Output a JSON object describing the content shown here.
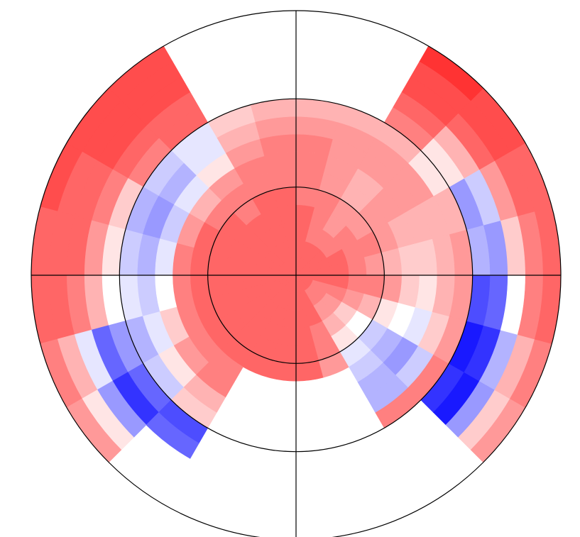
{
  "chart_data": {
    "type": "polar_heatmap",
    "r_edges": [
      0,
      0.2,
      0.4,
      0.6,
      0.8,
      1.0,
      1.2,
      1.4,
      1.6,
      1.8,
      2.0,
      2.2,
      2.4,
      2.6,
      2.8,
      3.0
    ],
    "theta_edges": [
      0,
      15,
      30,
      45,
      60,
      75,
      90,
      105,
      120,
      135,
      150,
      165,
      180,
      195,
      210,
      225,
      240,
      255,
      270,
      285,
      300,
      315,
      330,
      345,
      360
    ],
    "values": [
      [
        0.6,
        0.6,
        0.6,
        0.6,
        0.6,
        0.6,
        0.6,
        0.6,
        0.6,
        0.6,
        0.6,
        0.6,
        0.6,
        0.6,
        0.6,
        0.6,
        0.6,
        0.6,
        0.6,
        0.6,
        0.6,
        0.6,
        0.6,
        0.6
      ],
      [
        0.6,
        0.6,
        0.6,
        0.6,
        0.6,
        0.6,
        0.6,
        0.6,
        0.6,
        0.6,
        0.6,
        0.6,
        0.6,
        0.6,
        0.6,
        0.6,
        0.6,
        0.6,
        0.6,
        0.6,
        0.5,
        0.5,
        0.5,
        0.6
      ],
      [
        0.6,
        0.6,
        0.5,
        0.5,
        0.5,
        0.6,
        0.6,
        0.6,
        0.6,
        0.6,
        0.6,
        0.6,
        0.6,
        0.6,
        0.6,
        0.6,
        0.6,
        0.6,
        0.6,
        0.6,
        0.4,
        0.4,
        0.5,
        0.6
      ],
      [
        0.5,
        0.5,
        0.5,
        0.4,
        0.5,
        0.6,
        0.6,
        0.6,
        0.6,
        0.6,
        0.6,
        0.6,
        0.6,
        0.6,
        0.6,
        0.6,
        0.6,
        0.6,
        0.6,
        0.5,
        0.3,
        0.2,
        0.4,
        0.5
      ],
      [
        0.4,
        0.5,
        0.4,
        0.4,
        0.5,
        0.5,
        0.6,
        0.6,
        0.5,
        0.6,
        0.6,
        0.6,
        0.6,
        0.6,
        0.6,
        0.6,
        0.6,
        0.6,
        0.6,
        0.5,
        0.1,
        0.0,
        0.3,
        0.5
      ],
      [
        0.3,
        0.4,
        0.4,
        0.3,
        0.4,
        0.5,
        0.5,
        0.5,
        0.5,
        0.5,
        0.6,
        0.6,
        0.6,
        0.6,
        0.6,
        0.6,
        0.6,
        0.6,
        0.6,
        0.4,
        -0.1,
        -0.2,
        0.1,
        0.4
      ],
      [
        0.2,
        0.3,
        0.4,
        0.3,
        0.4,
        0.5,
        0.5,
        0.5,
        0.4,
        0.3,
        0.4,
        0.5,
        0.5,
        0.5,
        0.5,
        0.5,
        null,
        null,
        null,
        null,
        -0.2,
        -0.3,
        0.0,
        0.2
      ],
      [
        0.2,
        0.3,
        0.4,
        0.4,
        0.4,
        0.5,
        0.5,
        0.4,
        0.1,
        -0.1,
        -0.2,
        -0.1,
        0.0,
        0.2,
        0.4,
        0.5,
        null,
        null,
        null,
        null,
        -0.3,
        -0.4,
        -0.1,
        0.1
      ],
      [
        0.3,
        0.3,
        0.4,
        0.4,
        0.4,
        0.4,
        0.4,
        0.3,
        -0.1,
        -0.3,
        -0.4,
        -0.3,
        -0.2,
        -0.1,
        0.1,
        0.3,
        null,
        null,
        null,
        null,
        -0.3,
        -0.2,
        0.2,
        0.3
      ],
      [
        0.4,
        0.3,
        0.1,
        0.3,
        0.3,
        0.3,
        0.3,
        0.2,
        -0.1,
        -0.2,
        -0.3,
        -0.2,
        -0.1,
        -0.3,
        -0.2,
        0.2,
        null,
        null,
        null,
        null,
        0.5,
        0.5,
        0.4,
        0.4
      ],
      [
        -0.3,
        -0.4,
        0.1,
        0.5,
        null,
        null,
        null,
        null,
        0.6,
        0.5,
        0.2,
        0.1,
        0.0,
        -0.4,
        -0.6,
        -0.7,
        null,
        null,
        null,
        null,
        null,
        -0.8,
        -0.9,
        -0.7
      ],
      [
        -0.4,
        -0.2,
        0.3,
        0.6,
        null,
        null,
        null,
        null,
        0.6,
        0.6,
        0.5,
        0.4,
        0.3,
        -0.6,
        -0.8,
        -0.6,
        null,
        null,
        null,
        null,
        null,
        -0.9,
        -0.8,
        -0.6
      ],
      [
        0.2,
        0.4,
        0.6,
        0.7,
        null,
        null,
        null,
        null,
        0.7,
        0.7,
        0.6,
        0.6,
        0.5,
        -0.1,
        -0.4,
        null,
        null,
        null,
        null,
        null,
        null,
        -0.4,
        -0.3,
        0.0
      ],
      [
        0.5,
        0.6,
        0.7,
        0.7,
        null,
        null,
        null,
        null,
        0.7,
        0.7,
        0.6,
        0.6,
        0.6,
        0.3,
        0.1,
        null,
        null,
        null,
        null,
        null,
        null,
        0.2,
        0.3,
        0.5
      ],
      [
        0.6,
        0.6,
        0.7,
        0.8,
        null,
        null,
        null,
        null,
        0.7,
        0.7,
        0.7,
        0.6,
        0.6,
        0.5,
        0.4,
        null,
        null,
        null,
        null,
        null,
        null,
        0.4,
        0.5,
        0.6
      ]
    ],
    "clim": [
      -1,
      1
    ],
    "colormap": "bwr",
    "rlim": [
      0,
      3
    ],
    "rticks": [
      1,
      2,
      3
    ],
    "thetaticks": [
      0,
      90,
      180,
      270
    ],
    "grid": true
  }
}
